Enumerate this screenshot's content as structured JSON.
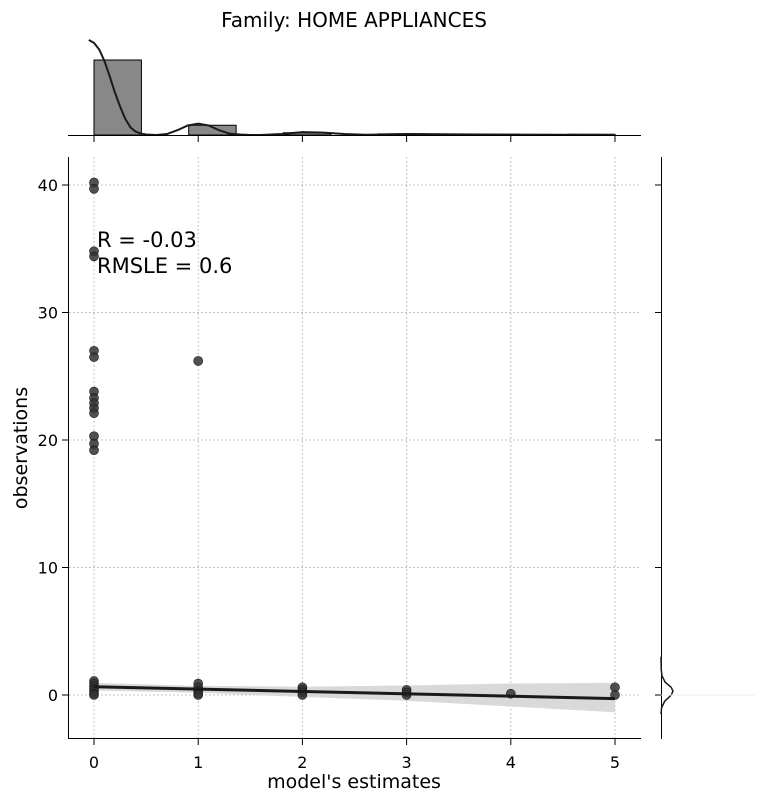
{
  "chart_data": {
    "type": "scatter",
    "title": "Family: HOME APPLIANCES",
    "xlabel": "model's estimates",
    "ylabel": "observations",
    "xlim": [
      -0.25,
      5.25
    ],
    "ylim": [
      -3.3,
      42.2
    ],
    "xticks": [
      "0",
      "1",
      "2",
      "3",
      "4",
      "5"
    ],
    "yticks": [
      "0",
      "10",
      "20",
      "30",
      "40"
    ],
    "grid": true,
    "annotation": [
      "R = -0.03",
      "RMSLE =  0.6"
    ],
    "points": [
      [
        0,
        40.2
      ],
      [
        0,
        39.7
      ],
      [
        0,
        34.8
      ],
      [
        0,
        34.4
      ],
      [
        0,
        27.0
      ],
      [
        0,
        26.5
      ],
      [
        0,
        23.8
      ],
      [
        0,
        23.3
      ],
      [
        0,
        22.9
      ],
      [
        0,
        22.5
      ],
      [
        0,
        22.1
      ],
      [
        0,
        20.3
      ],
      [
        0,
        19.7
      ],
      [
        0,
        19.2
      ],
      [
        0,
        1.1
      ],
      [
        0,
        0.9
      ],
      [
        0,
        0.7
      ],
      [
        0,
        0.5
      ],
      [
        0,
        0.3
      ],
      [
        0,
        0.1
      ],
      [
        0,
        0.0
      ],
      [
        1,
        26.2
      ],
      [
        1,
        0.9
      ],
      [
        1,
        0.6
      ],
      [
        1,
        0.3
      ],
      [
        1,
        0.1
      ],
      [
        1,
        0.0
      ],
      [
        2,
        0.6
      ],
      [
        2,
        0.4
      ],
      [
        2,
        0.2
      ],
      [
        2,
        0.0
      ],
      [
        3,
        0.4
      ],
      [
        3,
        0.2
      ],
      [
        3,
        0.0
      ],
      [
        4,
        0.1
      ],
      [
        5,
        0.6
      ],
      [
        5,
        0.0
      ]
    ],
    "regression": {
      "x": [
        0,
        5
      ],
      "y": [
        0.65,
        -0.28
      ]
    },
    "confidence_band": {
      "x": [
        0,
        1,
        2,
        3,
        4,
        5
      ],
      "upper": [
        0.95,
        0.72,
        0.65,
        0.75,
        0.9,
        0.95
      ],
      "lower": [
        0.35,
        0.18,
        -0.15,
        -0.45,
        -0.9,
        -1.35
      ]
    },
    "marginal_x_histogram": {
      "bin_edges": [
        0,
        0.455,
        0.909,
        1.364,
        1.818,
        2.273,
        2.727,
        3.182,
        3.636,
        4.091,
        4.545,
        5.0
      ],
      "density": [
        1.0,
        0.0,
        0.13,
        0.0,
        0.03,
        0.0,
        0.015,
        0.0,
        0.01,
        0.0,
        0.01
      ],
      "kde_x": [
        -0.05,
        0.0,
        0.05,
        0.1,
        0.15,
        0.2,
        0.25,
        0.3,
        0.35,
        0.4,
        0.45,
        0.5,
        0.6,
        0.7,
        0.8,
        0.9,
        1.0,
        1.1,
        1.2,
        1.3,
        1.4,
        1.5,
        1.6,
        1.8,
        2.0,
        2.2,
        2.4,
        2.6,
        3.0,
        3.5,
        4.0,
        4.5,
        5.0
      ],
      "kde_y": [
        1.0,
        0.97,
        0.9,
        0.78,
        0.62,
        0.45,
        0.3,
        0.17,
        0.08,
        0.035,
        0.015,
        0.005,
        0.0,
        0.01,
        0.05,
        0.1,
        0.12,
        0.1,
        0.05,
        0.015,
        0.005,
        0.0,
        0.0,
        0.01,
        0.03,
        0.025,
        0.01,
        0.003,
        0.01,
        0.007,
        0.004,
        0.002,
        0.0
      ]
    },
    "marginal_y_kde": {
      "y": [
        -1.5,
        -1.0,
        -0.5,
        0.0,
        0.3,
        0.6,
        1.0,
        1.5,
        2.0,
        3.0
      ],
      "density": [
        0.0,
        0.05,
        0.3,
        0.85,
        1.0,
        0.85,
        0.35,
        0.08,
        0.02,
        0.0
      ]
    },
    "colors": {
      "points": "#333333",
      "line": "#1a1a1a",
      "band": "#d9d9d9",
      "hist": "#888888",
      "grid": "#b0b0b0"
    }
  }
}
